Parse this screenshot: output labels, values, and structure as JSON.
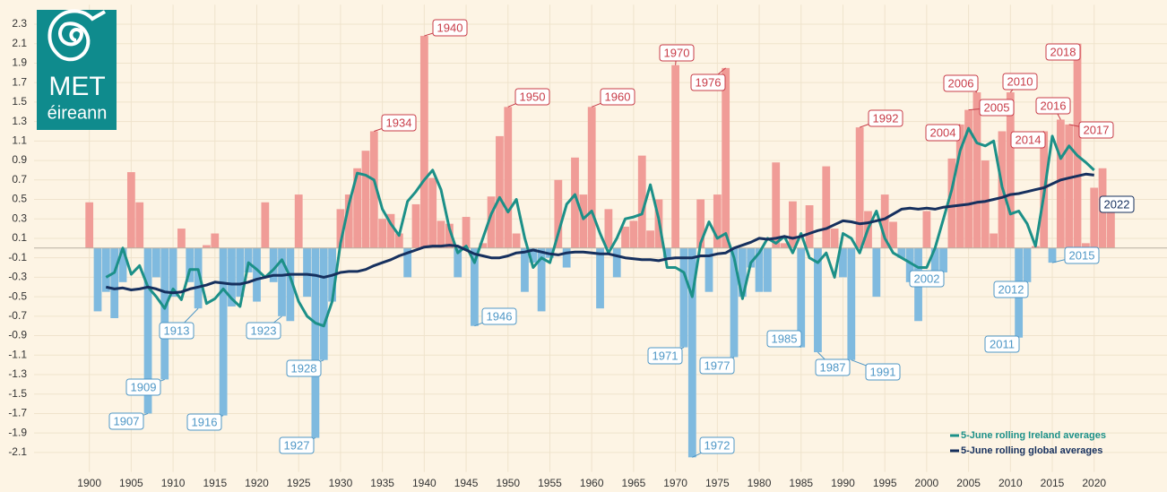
{
  "logo": {
    "name": "MET",
    "subname": "éireann"
  },
  "chart_data": {
    "type": "bar",
    "x": [
      1900,
      1901,
      1902,
      1903,
      1904,
      1905,
      1906,
      1907,
      1908,
      1909,
      1910,
      1911,
      1912,
      1913,
      1914,
      1915,
      1916,
      1917,
      1918,
      1919,
      1920,
      1921,
      1922,
      1923,
      1924,
      1925,
      1926,
      1927,
      1928,
      1929,
      1930,
      1931,
      1932,
      1933,
      1934,
      1935,
      1936,
      1937,
      1938,
      1939,
      1940,
      1941,
      1942,
      1943,
      1944,
      1945,
      1946,
      1947,
      1948,
      1949,
      1950,
      1951,
      1952,
      1953,
      1954,
      1955,
      1956,
      1957,
      1958,
      1959,
      1960,
      1961,
      1962,
      1963,
      1964,
      1965,
      1966,
      1967,
      1968,
      1969,
      1970,
      1971,
      1972,
      1973,
      1974,
      1975,
      1976,
      1977,
      1978,
      1979,
      1980,
      1981,
      1982,
      1983,
      1984,
      1985,
      1986,
      1987,
      1988,
      1989,
      1990,
      1991,
      1992,
      1993,
      1994,
      1995,
      1996,
      1997,
      1998,
      1999,
      2000,
      2001,
      2002,
      2003,
      2004,
      2005,
      2006,
      2007,
      2008,
      2009,
      2010,
      2011,
      2012,
      2013,
      2014,
      2015,
      2016,
      2017,
      2018,
      2019,
      2020,
      2021,
      2022
    ],
    "values": [
      0.47,
      -0.65,
      -0.45,
      -0.72,
      -0.35,
      0.78,
      0.47,
      -1.7,
      -0.3,
      -1.35,
      -0.5,
      0.2,
      -0.35,
      -0.62,
      0.03,
      0.15,
      -1.72,
      -0.6,
      -0.5,
      -0.25,
      -0.55,
      0.47,
      -0.35,
      -0.7,
      -0.75,
      0.55,
      -0.5,
      -1.95,
      -1.15,
      -0.55,
      0.4,
      0.55,
      0.82,
      1.0,
      1.2,
      0.3,
      0.35,
      0.15,
      -0.3,
      0.45,
      2.18,
      0.72,
      0.28,
      0.25,
      -0.3,
      0.32,
      -0.8,
      0.05,
      0.53,
      1.15,
      1.45,
      0.15,
      -0.45,
      -0.15,
      -0.65,
      -0.1,
      0.7,
      -0.2,
      0.93,
      0.55,
      1.45,
      -0.62,
      0.4,
      -0.3,
      0.22,
      0.28,
      0.95,
      0.18,
      0.5,
      -0.1,
      1.88,
      -1.02,
      -2.15,
      0.5,
      -0.45,
      0.55,
      1.85,
      -1.12,
      -0.5,
      -0.2,
      -0.45,
      -0.45,
      0.88,
      0.05,
      0.48,
      -1.02,
      0.44,
      -1.07,
      0.84,
      0.2,
      -0.3,
      -1.15,
      1.24,
      0.38,
      -0.5,
      0.55,
      0.27,
      -0.1,
      -0.35,
      -0.75,
      0.38,
      -0.25,
      -0.25,
      0.92,
      1.27,
      1.42,
      1.6,
      0.9,
      0.15,
      1.2,
      1.6,
      -0.92,
      -0.35,
      0.02,
      1.2,
      -0.15,
      1.32,
      1.27,
      2.1,
      0.05,
      0.62,
      0.82,
      0.45
    ],
    "colors": {
      "positive": "#f09c97",
      "negative": "#7fbadf"
    },
    "series": [
      {
        "name": "5-June rolling Ireland averages",
        "color": "#1c9088",
        "values": [
          null,
          null,
          -0.3,
          -0.25,
          0.0,
          -0.27,
          -0.18,
          -0.4,
          -0.5,
          -0.62,
          -0.42,
          -0.53,
          -0.22,
          -0.22,
          -0.57,
          -0.52,
          -0.42,
          -0.52,
          -0.6,
          -0.15,
          -0.22,
          -0.3,
          -0.22,
          -0.12,
          -0.3,
          -0.55,
          -0.7,
          -0.77,
          -0.8,
          -0.55,
          0.05,
          0.45,
          0.77,
          0.75,
          0.7,
          0.4,
          0.25,
          0.13,
          0.48,
          0.58,
          0.7,
          0.8,
          0.6,
          0.2,
          -0.05,
          0.02,
          -0.15,
          0.1,
          0.35,
          0.52,
          0.37,
          0.5,
          0.1,
          -0.2,
          -0.1,
          -0.15,
          0.15,
          0.45,
          0.55,
          0.3,
          0.38,
          0.15,
          -0.05,
          0.1,
          0.3,
          0.32,
          0.35,
          0.65,
          0.3,
          -0.2,
          -0.2,
          -0.25,
          -0.5,
          0.05,
          0.27,
          0.1,
          0.15,
          -0.1,
          -0.52,
          -0.15,
          -0.05,
          0.1,
          0.05,
          0.12,
          -0.05,
          0.15,
          -0.1,
          -0.15,
          -0.05,
          -0.3,
          0.15,
          0.1,
          -0.05,
          0.2,
          0.38,
          0.1,
          -0.05,
          -0.1,
          -0.15,
          -0.2,
          -0.2,
          0.0,
          0.3,
          0.6,
          1.0,
          1.23,
          1.08,
          1.05,
          1.1,
          0.63,
          0.35,
          0.38,
          0.25,
          0.02,
          0.55,
          1.15,
          0.92,
          1.05,
          0.95,
          0.88,
          0.8,
          null,
          null
        ]
      },
      {
        "name": "5-June rolling global averages",
        "color": "#16305e",
        "values": [
          null,
          null,
          -0.4,
          -0.42,
          -0.41,
          -0.43,
          -0.42,
          -0.4,
          -0.42,
          -0.45,
          -0.46,
          -0.45,
          -0.42,
          -0.4,
          -0.38,
          -0.35,
          -0.36,
          -0.37,
          -0.37,
          -0.35,
          -0.32,
          -0.3,
          -0.28,
          -0.28,
          -0.27,
          -0.27,
          -0.27,
          -0.28,
          -0.3,
          -0.28,
          -0.25,
          -0.24,
          -0.24,
          -0.22,
          -0.18,
          -0.15,
          -0.12,
          -0.08,
          -0.05,
          -0.02,
          0.01,
          0.02,
          0.02,
          0.03,
          0.02,
          -0.02,
          -0.06,
          -0.08,
          -0.1,
          -0.1,
          -0.08,
          -0.05,
          -0.04,
          -0.02,
          -0.04,
          -0.06,
          -0.07,
          -0.05,
          -0.04,
          -0.04,
          -0.05,
          -0.06,
          -0.06,
          -0.08,
          -0.1,
          -0.11,
          -0.12,
          -0.12,
          -0.13,
          -0.11,
          -0.1,
          -0.1,
          -0.1,
          -0.08,
          -0.08,
          -0.06,
          -0.05,
          0.0,
          0.03,
          0.06,
          0.1,
          0.09,
          0.1,
          0.12,
          0.1,
          0.12,
          0.15,
          0.18,
          0.2,
          0.24,
          0.28,
          0.27,
          0.25,
          0.26,
          0.28,
          0.3,
          0.35,
          0.4,
          0.41,
          0.4,
          0.41,
          0.4,
          0.42,
          0.43,
          0.44,
          0.45,
          0.47,
          0.48,
          0.5,
          0.52,
          0.55,
          0.56,
          0.58,
          0.6,
          0.62,
          0.66,
          0.7,
          0.72,
          0.74,
          0.76,
          0.75,
          null,
          null
        ]
      }
    ],
    "annotations": [
      "1907",
      "1909",
      "1913",
      "1916",
      "1923",
      "1927",
      "1928",
      "1934",
      "1940",
      "1946",
      "1950",
      "1960",
      "1970",
      "1971",
      "1972",
      "1976",
      "1977",
      "1985",
      "1987",
      "1991",
      "1992",
      "2002",
      "2004",
      "2005",
      "2006",
      "2010",
      "2011",
      "2012",
      "2014",
      "2015",
      "2016",
      "2017",
      "2018",
      "2022"
    ],
    "xlim": [
      1893.4,
      2028.7
    ],
    "xticks": [
      1900,
      1905,
      1910,
      1915,
      1920,
      1925,
      1930,
      1935,
      1940,
      1945,
      1950,
      1955,
      1960,
      1965,
      1970,
      1975,
      1980,
      1985,
      1990,
      1995,
      2000,
      2005,
      2010,
      2015,
      2020
    ],
    "ylim": [
      -2.3,
      2.5
    ],
    "yticks": [
      2.3,
      2.1,
      1.9,
      1.7,
      1.5,
      1.3,
      1.1,
      0.9,
      0.7,
      0.5,
      0.3,
      0.1,
      -0.1,
      -0.3,
      -0.5,
      -0.7,
      -0.9,
      -1.1,
      -1.3,
      -1.5,
      -1.7,
      -1.9,
      -2.1
    ],
    "grid": true,
    "legend": "lower right"
  }
}
